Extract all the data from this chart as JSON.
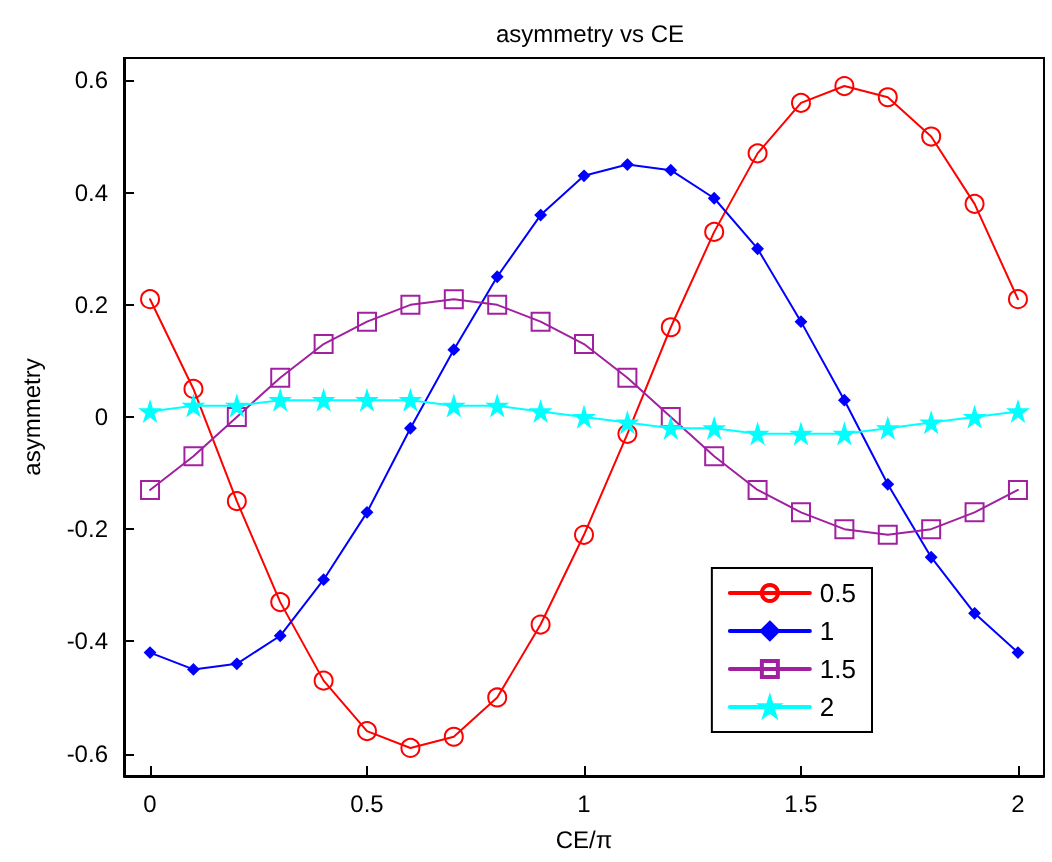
{
  "chart_data": {
    "type": "line",
    "title": "asymmetry vs CE",
    "xlabel": "CE/π",
    "ylabel": "asymmetry",
    "x": [
      0,
      0.1,
      0.2,
      0.3,
      0.4,
      0.5,
      0.6,
      0.7,
      0.8,
      0.9,
      1.0,
      1.1,
      1.2,
      1.3,
      1.4,
      1.5,
      1.6,
      1.7,
      1.8,
      1.9,
      2.0
    ],
    "series": [
      {
        "name": "0.5",
        "color": "#ff0000",
        "marker": "circle",
        "values": [
          0.21,
          0.05,
          -0.15,
          -0.33,
          -0.47,
          -0.56,
          -0.59,
          -0.57,
          -0.5,
          -0.37,
          -0.21,
          -0.03,
          0.16,
          0.33,
          0.47,
          0.56,
          0.59,
          0.57,
          0.5,
          0.38,
          0.21
        ]
      },
      {
        "name": "1",
        "color": "#0000ff",
        "marker": "diamond",
        "values": [
          -0.42,
          -0.45,
          -0.44,
          -0.39,
          -0.29,
          -0.17,
          -0.02,
          0.12,
          0.25,
          0.36,
          0.43,
          0.45,
          0.44,
          0.39,
          0.3,
          0.17,
          0.03,
          -0.12,
          -0.25,
          -0.35,
          -0.42
        ]
      },
      {
        "name": "1.5",
        "color": "#a020a0",
        "marker": "square",
        "values": [
          -0.13,
          -0.07,
          0.0,
          0.07,
          0.13,
          0.17,
          0.2,
          0.21,
          0.2,
          0.17,
          0.13,
          0.07,
          0.0,
          -0.07,
          -0.13,
          -0.17,
          -0.2,
          -0.21,
          -0.2,
          -0.17,
          -0.13
        ]
      },
      {
        "name": "2",
        "color": "#00ffff",
        "marker": "star",
        "values": [
          0.01,
          0.02,
          0.02,
          0.03,
          0.03,
          0.03,
          0.03,
          0.02,
          0.02,
          0.01,
          0.0,
          -0.01,
          -0.02,
          -0.02,
          -0.03,
          -0.03,
          -0.03,
          -0.02,
          -0.01,
          0.0,
          0.01
        ]
      }
    ],
    "xlim": [
      -0.06,
      2.06
    ],
    "xticks": [
      0,
      0.5,
      1,
      1.5,
      2
    ],
    "ylim": [
      -0.64,
      0.64
    ],
    "yticks": [
      -0.6,
      -0.4,
      -0.2,
      0,
      0.2,
      0.4,
      0.6
    ],
    "grid": false,
    "legend": "bottom right",
    "line_style": "solid"
  }
}
